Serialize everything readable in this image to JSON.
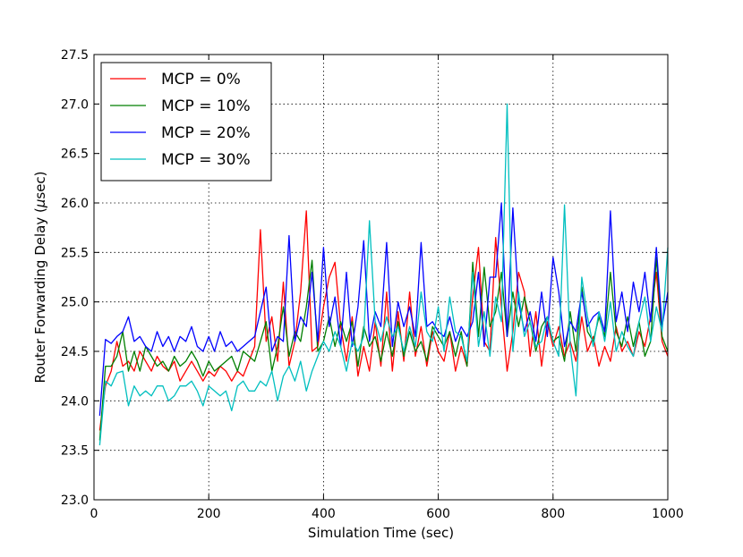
{
  "chart_data": {
    "type": "line",
    "title": "",
    "xlabel": "Simulation Time (sec)",
    "ylabel_prefix": "Router Forwarding Delay (",
    "ylabel_mu": "μ",
    "ylabel_suffix": "sec)",
    "xlim": [
      0,
      1000
    ],
    "ylim": [
      23.0,
      27.5
    ],
    "xticks": [
      0,
      200,
      400,
      600,
      800,
      1000
    ],
    "yticks": [
      23.0,
      23.5,
      24.0,
      24.5,
      25.0,
      25.5,
      26.0,
      26.5,
      27.0,
      27.5
    ],
    "xtick_labels": [
      "0",
      "200",
      "400",
      "600",
      "800",
      "1000"
    ],
    "ytick_labels": [
      "23.0",
      "23.5",
      "24.0",
      "24.5",
      "25.0",
      "25.5",
      "26.0",
      "26.5",
      "27.0",
      "27.5"
    ],
    "grid": true,
    "legend_position": "top-left",
    "x": [
      10,
      20,
      30,
      40,
      50,
      60,
      70,
      80,
      90,
      100,
      110,
      120,
      130,
      140,
      150,
      160,
      170,
      180,
      190,
      200,
      210,
      220,
      230,
      240,
      250,
      260,
      270,
      280,
      290,
      300,
      310,
      320,
      330,
      340,
      350,
      360,
      370,
      380,
      390,
      400,
      410,
      420,
      430,
      440,
      450,
      460,
      470,
      480,
      490,
      500,
      510,
      520,
      530,
      540,
      550,
      560,
      570,
      580,
      590,
      600,
      610,
      620,
      630,
      640,
      650,
      660,
      670,
      680,
      690,
      700,
      710,
      720,
      730,
      740,
      750,
      760,
      770,
      780,
      790,
      800,
      810,
      820,
      830,
      840,
      850,
      860,
      870,
      880,
      890,
      900,
      910,
      920,
      930,
      940,
      950,
      960,
      970,
      980,
      990,
      1000
    ],
    "series": [
      {
        "name": "MCP = 0%",
        "color": "#ff0000",
        "values": [
          23.7,
          24.15,
          24.3,
          24.6,
          24.35,
          24.4,
          24.3,
          24.5,
          24.4,
          24.3,
          24.45,
          24.35,
          24.3,
          24.4,
          24.2,
          24.3,
          24.4,
          24.3,
          24.2,
          24.3,
          24.25,
          24.35,
          24.3,
          24.2,
          24.3,
          24.25,
          24.4,
          24.55,
          25.73,
          24.6,
          24.85,
          24.4,
          25.2,
          24.35,
          24.6,
          25.1,
          25.92,
          24.5,
          24.55,
          24.95,
          25.25,
          25.4,
          24.75,
          24.4,
          24.85,
          24.25,
          24.55,
          24.3,
          24.8,
          24.35,
          25.1,
          24.3,
          24.9,
          24.4,
          25.1,
          24.45,
          24.75,
          24.35,
          24.7,
          24.5,
          24.4,
          24.7,
          24.3,
          24.55,
          24.35,
          25.05,
          25.55,
          24.6,
          24.5,
          25.65,
          24.95,
          24.3,
          24.7,
          25.3,
          25.1,
          24.45,
          24.9,
          24.35,
          24.8,
          24.55,
          24.75,
          24.45,
          24.6,
          24.4,
          24.85,
          24.5,
          24.65,
          24.35,
          24.55,
          24.4,
          24.75,
          24.5,
          24.6,
          24.45,
          24.7,
          24.55,
          24.85,
          25.3,
          24.6,
          24.45
        ]
      },
      {
        "name": "MCP = 10%",
        "color": "#007f00",
        "values": [
          23.6,
          24.35,
          24.35,
          24.45,
          24.7,
          24.3,
          24.5,
          24.3,
          24.55,
          24.45,
          24.35,
          24.4,
          24.3,
          24.45,
          24.35,
          24.4,
          24.5,
          24.4,
          24.25,
          24.4,
          24.3,
          24.35,
          24.4,
          24.45,
          24.3,
          24.5,
          24.45,
          24.4,
          24.6,
          24.8,
          24.3,
          24.55,
          24.95,
          24.45,
          24.7,
          24.6,
          24.95,
          25.42,
          24.5,
          24.6,
          24.85,
          24.55,
          24.8,
          24.6,
          24.8,
          24.35,
          24.75,
          24.55,
          24.65,
          24.4,
          24.7,
          24.45,
          24.8,
          24.45,
          24.7,
          24.5,
          24.6,
          24.4,
          24.75,
          24.65,
          24.55,
          24.7,
          24.45,
          24.7,
          24.35,
          25.4,
          24.65,
          25.35,
          24.75,
          24.9,
          25.3,
          24.65,
          25.1,
          24.75,
          25.05,
          24.8,
          24.5,
          24.75,
          24.85,
          24.6,
          24.65,
          24.4,
          24.9,
          24.5,
          25.15,
          24.7,
          24.6,
          24.85,
          24.65,
          25.3,
          24.7,
          24.55,
          24.85,
          24.55,
          24.8,
          24.45,
          24.6,
          25.45,
          24.65,
          24.5
        ]
      },
      {
        "name": "MCP = 20%",
        "color": "#0000ff",
        "values": [
          23.85,
          24.62,
          24.58,
          24.65,
          24.7,
          24.85,
          24.6,
          24.65,
          24.55,
          24.5,
          24.7,
          24.55,
          24.65,
          24.5,
          24.65,
          24.6,
          24.75,
          24.55,
          24.5,
          24.65,
          24.5,
          24.7,
          24.55,
          24.6,
          24.5,
          24.55,
          24.6,
          24.65,
          24.9,
          25.15,
          24.5,
          24.65,
          24.6,
          25.67,
          24.6,
          24.85,
          24.75,
          25.3,
          24.6,
          25.55,
          24.75,
          25.05,
          24.55,
          25.3,
          24.55,
          24.95,
          25.62,
          24.6,
          24.9,
          24.75,
          25.6,
          24.55,
          25.0,
          24.75,
          24.95,
          24.65,
          25.6,
          24.75,
          24.8,
          24.7,
          24.65,
          24.85,
          24.6,
          24.75,
          24.65,
          24.8,
          25.3,
          24.55,
          25.25,
          25.25,
          26.0,
          24.65,
          25.95,
          25.0,
          24.7,
          24.9,
          24.6,
          25.1,
          24.65,
          25.45,
          25.1,
          24.55,
          24.8,
          24.7,
          25.1,
          24.75,
          24.85,
          24.9,
          24.7,
          25.92,
          24.8,
          25.1,
          24.7,
          25.2,
          24.9,
          25.3,
          24.8,
          25.55,
          24.75,
          25.1
        ]
      },
      {
        "name": "MCP = 30%",
        "color": "#00bfbf",
        "values": [
          23.55,
          24.2,
          24.15,
          24.28,
          24.3,
          23.95,
          24.15,
          24.05,
          24.1,
          24.05,
          24.15,
          24.15,
          24.0,
          24.05,
          24.15,
          24.15,
          24.2,
          24.1,
          23.95,
          24.15,
          24.1,
          24.05,
          24.1,
          23.9,
          24.15,
          24.2,
          24.1,
          24.1,
          24.2,
          24.15,
          24.3,
          24.0,
          24.25,
          24.35,
          24.2,
          24.4,
          24.1,
          24.3,
          24.45,
          24.6,
          24.5,
          24.7,
          24.55,
          24.3,
          24.6,
          24.5,
          24.65,
          25.82,
          24.8,
          24.6,
          24.85,
          24.65,
          24.75,
          24.5,
          24.75,
          24.55,
          25.1,
          24.7,
          24.6,
          24.95,
          24.5,
          25.05,
          24.7,
          24.65,
          24.4,
          25.3,
          24.55,
          24.9,
          24.45,
          25.05,
          24.8,
          27.0,
          24.5,
          25.1,
          24.65,
          24.8,
          24.55,
          24.6,
          24.85,
          24.6,
          24.45,
          25.98,
          24.55,
          24.05,
          25.25,
          24.85,
          24.55,
          24.9,
          24.6,
          25.0,
          24.5,
          24.7,
          24.55,
          24.45,
          24.8,
          25.05,
          24.6,
          24.95,
          24.7,
          25.55
        ]
      }
    ]
  }
}
